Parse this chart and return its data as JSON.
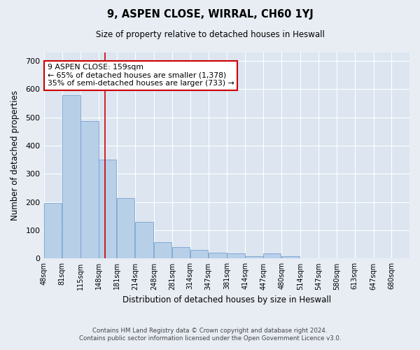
{
  "title": "9, ASPEN CLOSE, WIRRAL, CH60 1YJ",
  "subtitle": "Size of property relative to detached houses in Heswall",
  "xlabel": "Distribution of detached houses by size in Heswall",
  "ylabel": "Number of detached properties",
  "footer_line1": "Contains HM Land Registry data © Crown copyright and database right 2024.",
  "footer_line2": "Contains public sector information licensed under the Open Government Licence v3.0.",
  "bar_edges": [
    48,
    81,
    115,
    148,
    181,
    214,
    248,
    281,
    314,
    347,
    381,
    414,
    447,
    480,
    514,
    547,
    580,
    613,
    647,
    680,
    713
  ],
  "bar_heights": [
    197,
    578,
    487,
    350,
    215,
    130,
    57,
    40,
    30,
    22,
    18,
    8,
    18,
    8,
    0,
    0,
    0,
    0,
    0,
    0
  ],
  "bar_color": "#b8cfe8",
  "bar_edgecolor": "#6699cc",
  "property_size": 159,
  "property_line_color": "#cc0000",
  "annotation_text": "9 ASPEN CLOSE: 159sqm\n← 65% of detached houses are smaller (1,378)\n35% of semi-detached houses are larger (733) →",
  "annotation_box_edgecolor": "#cc0000",
  "ylim": [
    0,
    730
  ],
  "yticks": [
    0,
    100,
    200,
    300,
    400,
    500,
    600,
    700
  ],
  "xlim_left": 48,
  "xlim_right": 713,
  "background_color": "#e8edf4",
  "plot_background": "#dce5f0"
}
